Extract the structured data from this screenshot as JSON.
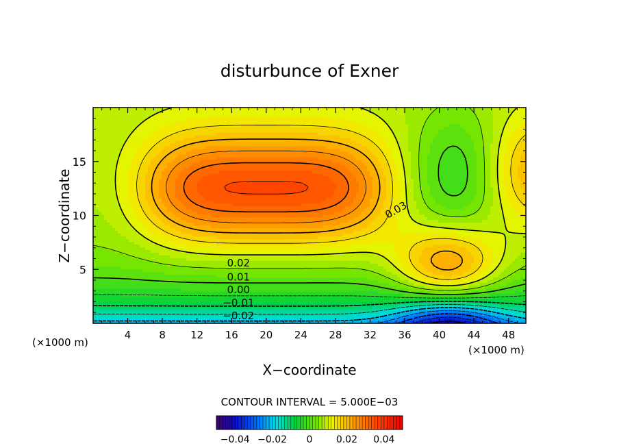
{
  "chart_data": {
    "type": "heatmap",
    "title": "disturbunce of Exner",
    "xlabel": "X−coordinate",
    "ylabel": "Z−coordinate",
    "x_unit": "(×1000 m)",
    "y_unit": "(×1000 m)",
    "xlim": [
      0,
      50
    ],
    "ylim": [
      0,
      20
    ],
    "x_ticks": [
      4,
      8,
      12,
      16,
      20,
      24,
      28,
      32,
      36,
      40,
      44,
      48
    ],
    "x_tick_labels": [
      "4",
      "8",
      "12",
      "16",
      "20",
      "24",
      "28",
      "32",
      "36",
      "40",
      "44",
      "48"
    ],
    "y_ticks": [
      5,
      10,
      15
    ],
    "y_tick_labels": [
      "5",
      "10",
      "15"
    ],
    "contour_interval_text": "CONTOUR INTERVAL = 5.000E−03",
    "contour_interval": 0.005,
    "contour_labels": [
      {
        "text": "0.03",
        "x": 35.0,
        "y": 10.5,
        "rotate": -30
      },
      {
        "text": "0.02",
        "x": 16.8,
        "y": 5.6,
        "rotate": 0
      },
      {
        "text": "0.01",
        "x": 16.8,
        "y": 4.3,
        "rotate": 0
      },
      {
        "text": "0.00",
        "x": 16.8,
        "y": 3.1,
        "rotate": 0
      },
      {
        "text": "−0.01",
        "x": 16.8,
        "y": 1.9,
        "rotate": 0
      },
      {
        "text": "−0.02",
        "x": 16.8,
        "y": 0.7,
        "rotate": 0
      }
    ],
    "value_range": [
      -0.05,
      0.05
    ],
    "colorbar": {
      "ticks": [
        -0.04,
        -0.02,
        0,
        0.02,
        0.04
      ],
      "tick_labels": [
        "−0.04",
        "−0.02",
        "0",
        "0.02",
        "0.04"
      ]
    },
    "field_description_values": {
      "max_core_value": 0.044,
      "min_core_value": -0.05,
      "high_center": {
        "x": 20,
        "z": 12.5
      },
      "low_center": {
        "x": 41,
        "z": 0
      }
    }
  }
}
